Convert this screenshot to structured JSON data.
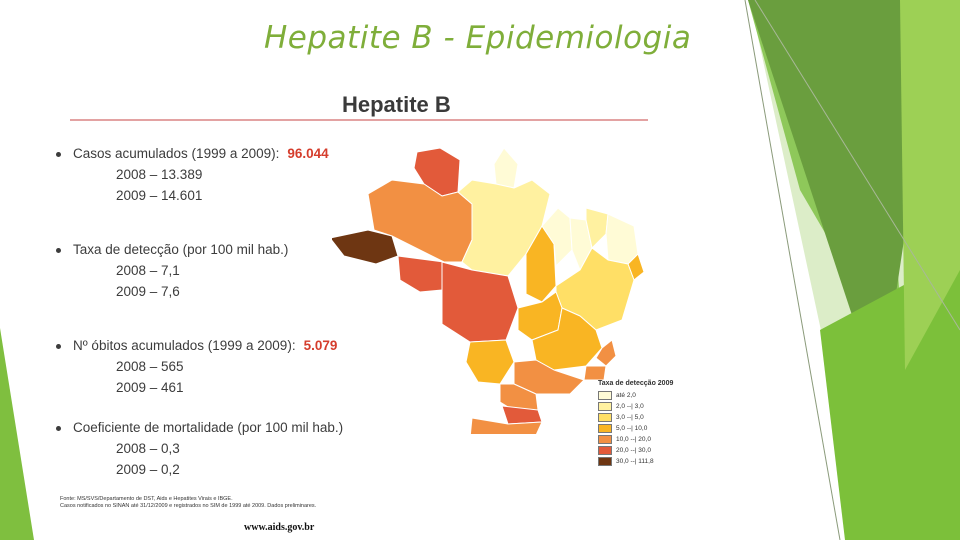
{
  "slide": {
    "title": "Hepatite B - Epidemiologia",
    "url": "www.aids.gov.br"
  },
  "panel": {
    "title": "Hepatite B",
    "stats": [
      {
        "label": "Casos acumulados (1999  a 2009):",
        "highlight": "96.044",
        "subs": [
          "2008 – 13.389",
          "2009 –  14.601"
        ]
      },
      {
        "label": "Taxa de detecção (por 100 mil hab.)",
        "highlight": "",
        "subs": [
          "2008 – 7,1",
          "2009 – 7,6"
        ]
      },
      {
        "label": "Nº óbitos acumulados (1999 a 2009):",
        "highlight": "5.079",
        "subs": [
          "2008 – 565",
          "2009 – 461"
        ]
      },
      {
        "label": "Coeficiente de mortalidade (por 100 mil hab.)",
        "highlight": "",
        "subs": [
          "2008 – 0,3",
          "2009 – 0,2"
        ]
      }
    ],
    "source_lines": [
      "Fonte: MS/SVS/Departamento de DST, Aids e Hepatites Virais e IBGE.",
      "Casos notificados no SINAN até 31/12/2009 e registrados no SIM de 1999 até 2009. Dados preliminares."
    ]
  },
  "map_legend": {
    "title": "Taxa de detecção 2009",
    "items": [
      {
        "label": "até 2,0",
        "color": "#fffbd6"
      },
      {
        "label": "2,0 --| 3,0",
        "color": "#fff1a0"
      },
      {
        "label": "3,0 --| 5,0",
        "color": "#ffdf66"
      },
      {
        "label": "5,0 --| 10,0",
        "color": "#f9b523"
      },
      {
        "label": "10,0 --| 20,0",
        "color": "#f29043"
      },
      {
        "label": "20,0 --| 30,0",
        "color": "#e25a3a"
      },
      {
        "label": "30,0 --| 111,8",
        "color": "#6e3612"
      }
    ]
  }
}
